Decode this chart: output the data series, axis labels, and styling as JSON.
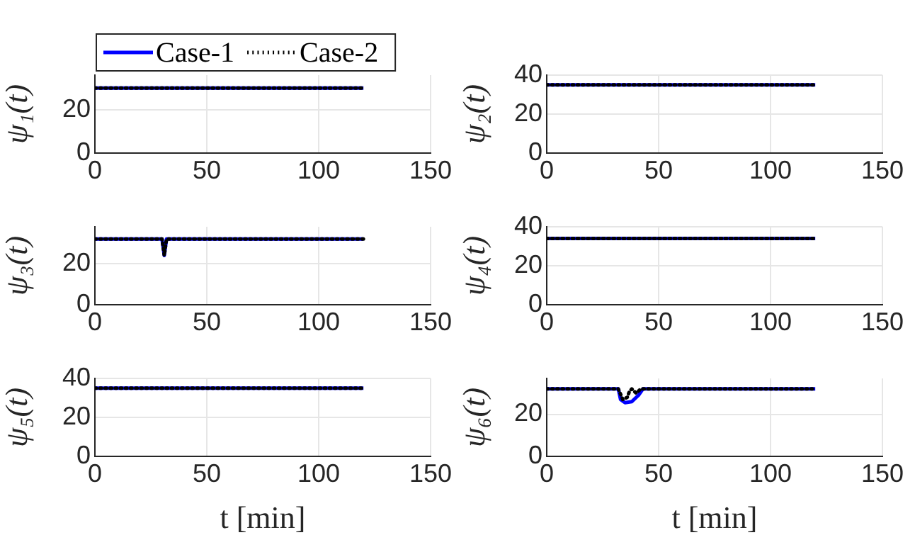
{
  "chart_data": [
    {
      "type": "line",
      "ylabel": "ψ₁(t)",
      "xlim": [
        0,
        150
      ],
      "xticks": [
        0,
        50,
        100,
        150
      ],
      "ylim": [
        0,
        36
      ],
      "yticks": [
        0,
        20
      ],
      "grid": true,
      "legend": "top",
      "series": [
        {
          "name": "Case-1",
          "color": "#0000ff",
          "line_style": "solid",
          "x": [
            0,
            120
          ],
          "values": [
            30,
            30
          ]
        },
        {
          "name": "Case-2",
          "color": "#000000",
          "line_style": "dotted",
          "x": [
            0,
            120
          ],
          "values": [
            30,
            30
          ]
        }
      ]
    },
    {
      "type": "line",
      "ylabel": "ψ₂(t)",
      "xlim": [
        0,
        150
      ],
      "xticks": [
        0,
        50,
        100,
        150
      ],
      "ylim": [
        0,
        40
      ],
      "yticks": [
        0,
        20,
        40
      ],
      "grid": true,
      "series": [
        {
          "color": "#0000ff",
          "line_style": "solid",
          "x": [
            0,
            120
          ],
          "values": [
            35,
            35
          ]
        },
        {
          "color": "#000000",
          "line_style": "dotted",
          "x": [
            0,
            120
          ],
          "values": [
            35,
            35
          ]
        }
      ]
    },
    {
      "type": "line",
      "ylabel": "ψ₃(t)",
      "xlim": [
        0,
        150
      ],
      "xticks": [
        0,
        50,
        100,
        150
      ],
      "ylim": [
        0,
        38
      ],
      "yticks": [
        0,
        20
      ],
      "grid": true,
      "series": [
        {
          "color": "#0000ff",
          "line_style": "solid",
          "x": [
            0,
            30,
            31,
            32,
            120
          ],
          "values": [
            32,
            32,
            24,
            32,
            32
          ]
        },
        {
          "color": "#000000",
          "line_style": "dotted",
          "x": [
            0,
            30,
            31,
            32,
            120
          ],
          "values": [
            32,
            32,
            24,
            32,
            32
          ]
        }
      ]
    },
    {
      "type": "line",
      "ylabel": "ψ₄(t)",
      "xlim": [
        0,
        150
      ],
      "xticks": [
        0,
        50,
        100,
        150
      ],
      "ylim": [
        0,
        40
      ],
      "yticks": [
        0,
        20,
        40
      ],
      "grid": true,
      "series": [
        {
          "color": "#0000ff",
          "line_style": "solid",
          "x": [
            0,
            120
          ],
          "values": [
            34,
            34
          ]
        },
        {
          "color": "#000000",
          "line_style": "dotted",
          "x": [
            0,
            120
          ],
          "values": [
            34,
            34
          ]
        }
      ]
    },
    {
      "type": "line",
      "ylabel": "ψ₅(t)",
      "xlabel": "t [min]",
      "xlim": [
        0,
        150
      ],
      "xticks": [
        0,
        50,
        100,
        150
      ],
      "ylim": [
        0,
        40
      ],
      "yticks": [
        0,
        20,
        40
      ],
      "grid": true,
      "series": [
        {
          "color": "#0000ff",
          "line_style": "solid",
          "x": [
            0,
            120
          ],
          "values": [
            35,
            35
          ]
        },
        {
          "color": "#000000",
          "line_style": "dotted",
          "x": [
            0,
            120
          ],
          "values": [
            35,
            35
          ]
        }
      ]
    },
    {
      "type": "line",
      "ylabel": "ψ₆(t)",
      "xlabel": "t [min]",
      "xlim": [
        0,
        150
      ],
      "xticks": [
        0,
        50,
        100,
        150
      ],
      "ylim": [
        0,
        37
      ],
      "yticks": [
        0,
        20
      ],
      "grid": true,
      "series": [
        {
          "color": "#0000ff",
          "line_style": "solid",
          "x": [
            0,
            32,
            33,
            35,
            38,
            41,
            43,
            120
          ],
          "values": [
            32,
            32,
            27,
            25.5,
            26,
            29,
            32,
            32
          ]
        },
        {
          "color": "#000000",
          "line_style": "dotted",
          "x": [
            0,
            32,
            34,
            36,
            37,
            38,
            40,
            42,
            120
          ],
          "values": [
            32,
            32,
            27,
            28,
            31,
            32,
            30,
            32,
            32
          ]
        }
      ]
    }
  ]
}
